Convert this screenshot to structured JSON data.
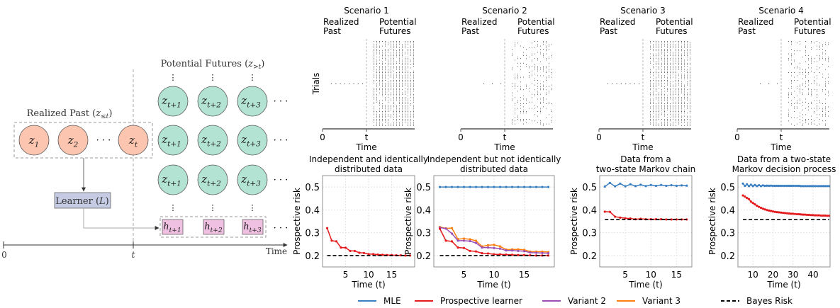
{
  "diagram": {
    "realized_past_label": {
      "text": "Realized Past (",
      "var": "z",
      "sub": "≤t",
      "close": ")"
    },
    "potential_futures_label": {
      "text": "Potential Futures (",
      "var": "z",
      "sub": ">t",
      "close": ")"
    },
    "past_nodes": [
      {
        "var": "z",
        "sub": "1"
      },
      {
        "var": "z",
        "sub": "2"
      },
      {
        "var": "z",
        "sub": "t"
      }
    ],
    "future_nodes": [
      {
        "var": "z",
        "sub": "t+1"
      },
      {
        "var": "z",
        "sub": "t+2"
      },
      {
        "var": "z",
        "sub": "t+3"
      }
    ],
    "hypotheses": [
      {
        "var": "h",
        "sub": "t+1"
      },
      {
        "var": "h",
        "sub": "t+2"
      },
      {
        "var": "h",
        "sub": "t+3"
      }
    ],
    "learner": {
      "text": "Learner (",
      "var": "L",
      "close": ")"
    },
    "ellipsis": "· · ·",
    "vdots": "⋮",
    "timeline": {
      "start": "0",
      "mid": "t",
      "label": "Time"
    },
    "colors": {
      "past": "#fcc5b0",
      "future": "#b3e3d3",
      "learner": "#c5cbe3",
      "hypothesis": "#f0c0e2"
    }
  },
  "scenarios": [
    {
      "title": "Scenario 1",
      "past": "Realized\nPast",
      "future": "Potential\nFutures",
      "ylabel": "Trials",
      "xticks": [
        "0",
        "t"
      ],
      "xlabel": "Time",
      "past_points": 8
    },
    {
      "title": "Scenario 2",
      "past": "Realized\nPast",
      "future": "Potential\nFutures",
      "xticks": [
        "0",
        "t"
      ],
      "xlabel": "Time",
      "past_points": 3
    },
    {
      "title": "Scenario 3",
      "past": "Realized\nPast",
      "future": "Potential\nFutures",
      "xticks": [
        "0",
        "t"
      ],
      "xlabel": "Time",
      "past_points": 8
    },
    {
      "title": "Scenario 4",
      "past": "Realized\nPast",
      "future": "Potential\nFutures",
      "xticks": [
        "0",
        "t"
      ],
      "xlabel": "Time",
      "past_points": 3
    }
  ],
  "colors": {
    "MLE": "#3a7fc1",
    "Prospective learner": "#e41a1c",
    "Variant 2": "#9b4fb5",
    "Variant 3": "#ff7f0e",
    "Bayes Risk": "#000000"
  },
  "legend": {
    "placement": "bottom",
    "entries": [
      "MLE",
      "Prospective learner",
      "Variant 2",
      "Variant 3",
      "Bayes Risk"
    ]
  },
  "chart_data": [
    {
      "type": "line",
      "title": "Independent and identically\ndistributed data",
      "xlabel": "Time (t)",
      "ylabel": "Prospective risk",
      "xlim": [
        0,
        20
      ],
      "ylim": [
        0.15,
        0.55
      ],
      "xticks": [
        5,
        10,
        15
      ],
      "yticks": [
        0.2,
        0.3,
        0.4,
        0.5
      ],
      "grid": true,
      "series": [
        {
          "name": "Prospective learner",
          "x": [
            1,
            2,
            3,
            4,
            5,
            6,
            7,
            8,
            9,
            10,
            11,
            12,
            13,
            14,
            15,
            16,
            17,
            18,
            19
          ],
          "values": [
            0.32,
            0.265,
            0.262,
            0.235,
            0.234,
            0.22,
            0.22,
            0.212,
            0.211,
            0.206,
            0.206,
            0.204,
            0.203,
            0.202,
            0.202,
            0.201,
            0.201,
            0.2,
            0.2
          ]
        },
        {
          "name": "Bayes Risk",
          "x": [
            1,
            19
          ],
          "values": [
            0.2,
            0.2
          ],
          "dashed": true
        }
      ]
    },
    {
      "type": "line",
      "title": "Independent but not identically\ndistributed data",
      "xlabel": "Time (t)",
      "ylabel": "Prospective risk",
      "xlim": [
        0,
        20
      ],
      "ylim": [
        0.15,
        0.55
      ],
      "xticks": [
        5,
        10,
        15
      ],
      "yticks": [
        0.2,
        0.3,
        0.4,
        0.5
      ],
      "grid": true,
      "series": [
        {
          "name": "MLE",
          "x": [
            1,
            2,
            3,
            4,
            5,
            6,
            7,
            8,
            9,
            10,
            11,
            12,
            13,
            14,
            15,
            16,
            17,
            18,
            19
          ],
          "values": [
            0.5,
            0.5,
            0.5,
            0.5,
            0.5,
            0.5,
            0.5,
            0.5,
            0.5,
            0.5,
            0.5,
            0.5,
            0.5,
            0.5,
            0.5,
            0.5,
            0.5,
            0.5,
            0.5
          ]
        },
        {
          "name": "Variant 3",
          "x": [
            1,
            2,
            3,
            4,
            5,
            6,
            7,
            8,
            9,
            10,
            11,
            12,
            13,
            14,
            15,
            16,
            17,
            18,
            19
          ],
          "values": [
            0.325,
            0.319,
            0.32,
            0.272,
            0.274,
            0.271,
            0.265,
            0.24,
            0.245,
            0.247,
            0.24,
            0.226,
            0.227,
            0.227,
            0.225,
            0.217,
            0.217,
            0.217,
            0.215
          ]
        },
        {
          "name": "Variant 2",
          "x": [
            1,
            2,
            3,
            4,
            5,
            6,
            7,
            8,
            9,
            10,
            11,
            12,
            13,
            14,
            15,
            16,
            17,
            18,
            19
          ],
          "values": [
            0.322,
            0.318,
            0.296,
            0.265,
            0.265,
            0.263,
            0.255,
            0.235,
            0.235,
            0.233,
            0.23,
            0.222,
            0.222,
            0.22,
            0.219,
            0.213,
            0.212,
            0.211,
            0.21
          ]
        },
        {
          "name": "Prospective learner",
          "x": [
            1,
            2,
            3,
            4,
            5,
            6,
            7,
            8,
            9,
            10,
            11,
            12,
            13,
            14,
            15,
            16,
            17,
            18,
            19
          ],
          "values": [
            0.317,
            0.265,
            0.262,
            0.235,
            0.233,
            0.22,
            0.218,
            0.21,
            0.209,
            0.205,
            0.205,
            0.204,
            0.203,
            0.202,
            0.202,
            0.201,
            0.2,
            0.2,
            0.2
          ]
        },
        {
          "name": "Bayes Risk",
          "x": [
            1,
            19
          ],
          "values": [
            0.2,
            0.2
          ],
          "dashed": true
        }
      ]
    },
    {
      "type": "line",
      "title": "Data from a\ntwo-state Markov chain",
      "xlabel": "Time (t)",
      "ylabel": "Prospective risk",
      "xlim": [
        0,
        18
      ],
      "ylim": [
        0.15,
        0.55
      ],
      "xticks": [
        5,
        10,
        15
      ],
      "yticks": [
        0.2,
        0.3,
        0.4,
        0.5
      ],
      "grid": true,
      "series": [
        {
          "name": "MLE",
          "x": [
            1,
            2,
            3,
            4,
            5,
            6,
            7,
            8,
            9,
            10,
            11,
            12,
            13,
            14,
            15,
            16,
            17
          ],
          "values": [
            0.502,
            0.518,
            0.503,
            0.515,
            0.503,
            0.512,
            0.504,
            0.51,
            0.504,
            0.509,
            0.505,
            0.509,
            0.505,
            0.508,
            0.505,
            0.507,
            0.506
          ]
        },
        {
          "name": "Prospective learner",
          "x": [
            1,
            2,
            3,
            4,
            5,
            6,
            7,
            8,
            9,
            10,
            11,
            12,
            13,
            14,
            15,
            16,
            17
          ],
          "values": [
            0.392,
            0.391,
            0.37,
            0.366,
            0.363,
            0.362,
            0.359,
            0.361,
            0.359,
            0.359,
            0.359,
            0.359,
            0.358,
            0.358,
            0.358,
            0.358,
            0.358
          ]
        },
        {
          "name": "Bayes Risk",
          "x": [
            1,
            17
          ],
          "values": [
            0.357,
            0.357
          ],
          "dashed": true
        }
      ]
    },
    {
      "type": "line",
      "title": "Data from a two-state\nMarkov decision process",
      "xlabel": "Time (t)",
      "ylabel": "Prospective risk",
      "xlim": [
        2.5,
        48.5
      ],
      "ylim": [
        0.15,
        0.55
      ],
      "xticks": [
        10,
        20,
        30,
        40
      ],
      "yticks": [
        0.2,
        0.3,
        0.4,
        0.5
      ],
      "grid": true,
      "series": [
        {
          "name": "MLE",
          "x": [
            5,
            6,
            7,
            8,
            9,
            10,
            11,
            12,
            13,
            14,
            15,
            16,
            17,
            18,
            19,
            20,
            21,
            22,
            23,
            24,
            25,
            26,
            27,
            28,
            29,
            30,
            31,
            32,
            33,
            34,
            35,
            36,
            37,
            38,
            39,
            40,
            41,
            42,
            43,
            44,
            45,
            46,
            47,
            48
          ],
          "values": [
            0.515,
            0.505,
            0.512,
            0.504,
            0.51,
            0.504,
            0.509,
            0.504,
            0.508,
            0.504,
            0.507,
            0.505,
            0.506,
            0.505,
            0.506,
            0.505,
            0.505,
            0.505,
            0.505,
            0.505,
            0.505,
            0.505,
            0.505,
            0.505,
            0.505,
            0.505,
            0.505,
            0.505,
            0.505,
            0.504,
            0.504,
            0.504,
            0.504,
            0.504,
            0.504,
            0.504,
            0.504,
            0.504,
            0.504,
            0.504,
            0.504,
            0.504,
            0.504,
            0.504
          ]
        },
        {
          "name": "Prospective learner",
          "x": [
            5,
            6,
            7,
            8,
            9,
            10,
            11,
            12,
            13,
            14,
            15,
            16,
            17,
            18,
            19,
            20,
            21,
            22,
            23,
            24,
            25,
            26,
            27,
            28,
            29,
            30,
            31,
            32,
            33,
            34,
            35,
            36,
            37,
            38,
            39,
            40,
            41,
            42,
            43,
            44,
            45,
            46,
            47,
            48
          ],
          "values": [
            0.463,
            0.458,
            0.452,
            0.447,
            0.436,
            0.43,
            0.424,
            0.418,
            0.413,
            0.409,
            0.405,
            0.402,
            0.399,
            0.397,
            0.395,
            0.393,
            0.391,
            0.39,
            0.389,
            0.388,
            0.387,
            0.386,
            0.385,
            0.384,
            0.383,
            0.383,
            0.382,
            0.381,
            0.381,
            0.38,
            0.379,
            0.379,
            0.378,
            0.378,
            0.377,
            0.377,
            0.376,
            0.376,
            0.376,
            0.375,
            0.375,
            0.375,
            0.374,
            0.374
          ]
        },
        {
          "name": "Bayes Risk",
          "x": [
            5,
            48
          ],
          "values": [
            0.357,
            0.357
          ],
          "dashed": true
        }
      ]
    }
  ]
}
